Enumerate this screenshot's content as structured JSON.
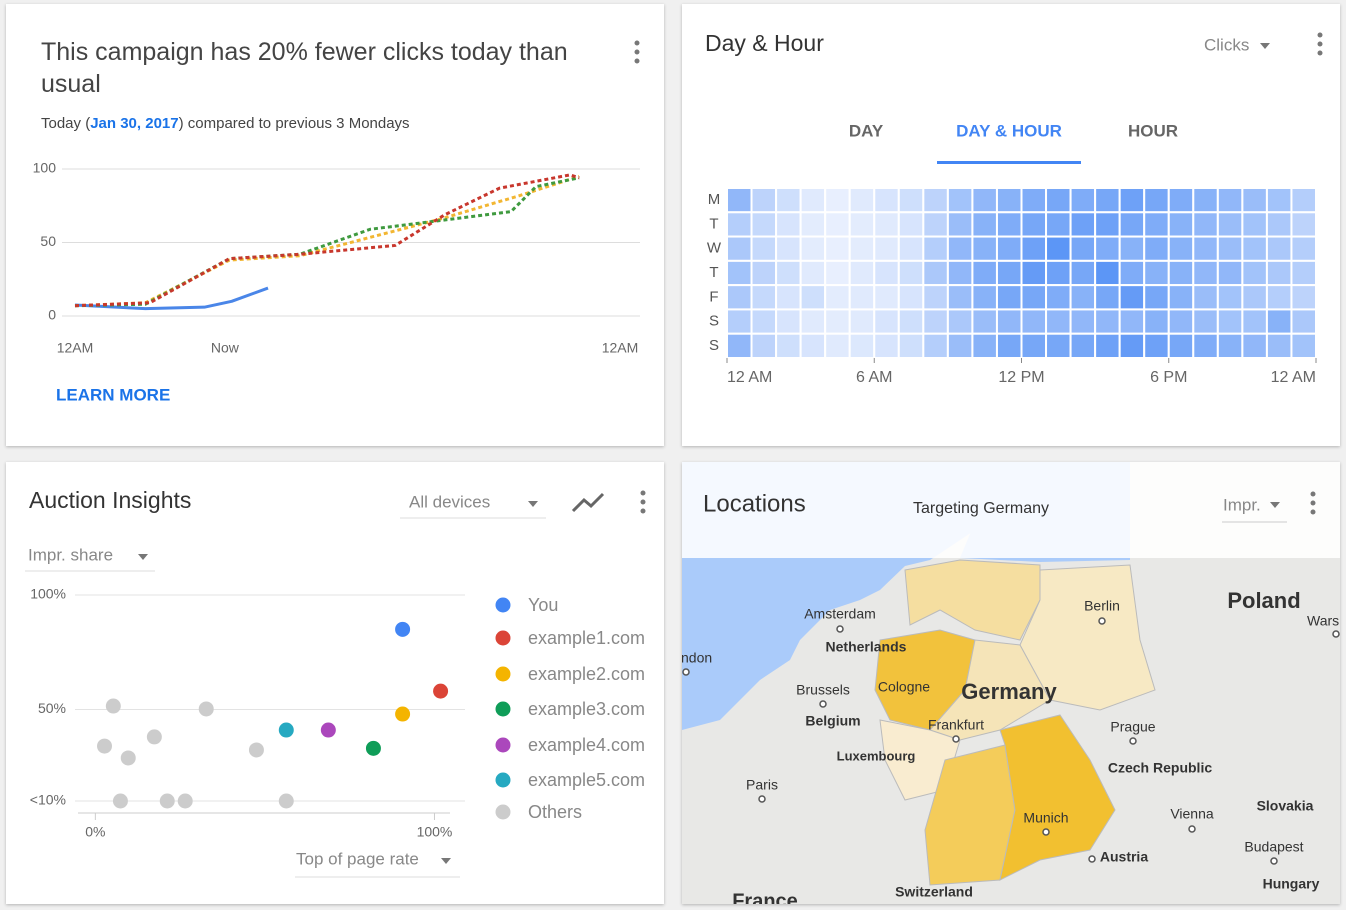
{
  "chart_data": [
    {
      "type": "line",
      "title": "This campaign has 20% fewer clicks today than usual",
      "subtitle": {
        "before": "Today (",
        "date": "Jan 30, 2017",
        "after": ") compared to previous 3 Mondays"
      },
      "link": "LEARN MORE",
      "xlim": [
        0,
        24
      ],
      "xticks": [
        {
          "value": 0,
          "label": "12AM"
        },
        {
          "value": 6.6,
          "label": "Now"
        },
        {
          "value": 24,
          "label": "12AM"
        }
      ],
      "ylim": [
        0,
        100
      ],
      "yticks": [
        0,
        50,
        100
      ],
      "grid": true,
      "series": [
        {
          "color": "#4a86e8",
          "dashed": false,
          "x": [
            0,
            3.1,
            5.7,
            6.9,
            8.5
          ],
          "values": [
            7.5,
            5,
            6,
            10,
            19
          ]
        },
        {
          "color": "#f2b632",
          "dashed": true,
          "x": [
            0,
            3.1,
            6.8,
            9.9,
            16.1,
            19.6,
            22.2
          ],
          "values": [
            7,
            9,
            38,
            41,
            66,
            82,
            95
          ]
        },
        {
          "color": "#3f9a3f",
          "dashed": true,
          "x": [
            0,
            3.1,
            6.8,
            9.9,
            13,
            15.6,
            19.2,
            20.3,
            22.2
          ],
          "values": [
            7,
            8,
            39,
            42,
            59,
            64,
            71,
            88,
            94
          ]
        },
        {
          "color": "#c8372d",
          "dashed": true,
          "x": [
            0,
            3.3,
            6.8,
            9.9,
            14.1,
            16.3,
            18.7,
            21.8,
            22.2
          ],
          "values": [
            7,
            9,
            39,
            42,
            48,
            69,
            87,
            96,
            94
          ]
        }
      ]
    },
    {
      "type": "heatmap",
      "title": "Day & Hour",
      "dropdown": "Clicks",
      "tabs": [
        "DAY",
        "DAY & HOUR",
        "HOUR"
      ],
      "active_tab": 1,
      "rows": [
        "M",
        "T",
        "W",
        "T",
        "F",
        "S",
        "S"
      ],
      "xlim": [
        0,
        24
      ],
      "xticks": [
        {
          "value": 0,
          "label": "12 AM"
        },
        {
          "value": 6,
          "label": "6 AM"
        },
        {
          "value": 12,
          "label": "12 PM"
        },
        {
          "value": 18,
          "label": "6 PM"
        },
        {
          "value": 24,
          "label": "12 AM"
        }
      ],
      "color": "#4285f4",
      "color_range": [
        0,
        100
      ],
      "values": [
        [
          55,
          30,
          20,
          10,
          5,
          10,
          15,
          20,
          30,
          45,
          55,
          60,
          65,
          70,
          65,
          70,
          75,
          70,
          65,
          60,
          55,
          50,
          45,
          35
        ],
        [
          35,
          25,
          15,
          8,
          5,
          8,
          10,
          15,
          30,
          50,
          60,
          65,
          70,
          70,
          75,
          75,
          70,
          65,
          60,
          55,
          50,
          45,
          40,
          30
        ],
        [
          40,
          25,
          15,
          8,
          5,
          8,
          10,
          15,
          35,
          55,
          60,
          65,
          75,
          85,
          70,
          65,
          60,
          65,
          60,
          55,
          50,
          45,
          40,
          35
        ],
        [
          45,
          30,
          20,
          10,
          5,
          10,
          15,
          20,
          40,
          55,
          65,
          70,
          80,
          75,
          70,
          85,
          65,
          60,
          60,
          55,
          55,
          45,
          40,
          35
        ],
        [
          40,
          25,
          15,
          20,
          8,
          10,
          10,
          15,
          30,
          50,
          60,
          70,
          70,
          65,
          60,
          70,
          80,
          70,
          60,
          50,
          45,
          40,
          35,
          30
        ],
        [
          35,
          25,
          15,
          10,
          8,
          10,
          15,
          20,
          30,
          40,
          50,
          55,
          55,
          55,
          55,
          55,
          55,
          60,
          55,
          50,
          45,
          45,
          60,
          40
        ],
        [
          55,
          30,
          20,
          15,
          10,
          12,
          15,
          20,
          35,
          50,
          60,
          70,
          70,
          70,
          70,
          75,
          80,
          75,
          70,
          65,
          60,
          55,
          50,
          45
        ]
      ]
    },
    {
      "type": "scatter",
      "title": "Auction Insights",
      "device_filter": "All devices",
      "y_label": "Impr. share",
      "x_label": "Top of page rate",
      "xlim": [
        -6,
        109
      ],
      "xticks": [
        {
          "value": 0,
          "label": "0%"
        },
        {
          "value": 100,
          "label": "100%"
        }
      ],
      "ylim": [
        10,
        100
      ],
      "yticks": [
        {
          "value": 10,
          "label": "<10%"
        },
        {
          "value": 50,
          "label": "50%"
        },
        {
          "value": 100,
          "label": "100%"
        }
      ],
      "grid": true,
      "series": [
        {
          "name": "You",
          "color": "#4285f4",
          "x": [
            90.6
          ],
          "values": [
            85
          ]
        },
        {
          "name": "example1.com",
          "color": "#db4437",
          "x": [
            101.8
          ],
          "values": [
            58
          ]
        },
        {
          "name": "example2.com",
          "color": "#f4b400",
          "x": [
            90.6
          ],
          "values": [
            48
          ]
        },
        {
          "name": "example3.com",
          "color": "#0f9d58",
          "x": [
            82
          ],
          "values": [
            33
          ]
        },
        {
          "name": "example4.com",
          "color": "#ab47bc",
          "x": [
            68.7
          ],
          "values": [
            41
          ]
        },
        {
          "name": "example5.com",
          "color": "#26a9c1",
          "x": [
            56.3
          ],
          "values": [
            41
          ]
        },
        {
          "name": "Others",
          "color": "#cccccc",
          "x": [
            5.3,
            32.7,
            2.7,
            17.4,
            9.7,
            47.5,
            7.4,
            21.2,
            26.5,
            56.3
          ],
          "values": [
            51.5,
            50.2,
            34,
            38,
            28.8,
            32.3,
            10,
            10,
            10,
            10
          ]
        }
      ]
    }
  ],
  "locations": {
    "title": "Locations",
    "subtitle": "Targeting Germany",
    "dropdown": "Impr.",
    "places": [
      "Amsterdam",
      "Netherlands",
      "ndon",
      "Brussels",
      "Belgium",
      "Cologne",
      "Germany",
      "Frankfurt",
      "Luxembourg",
      "Paris",
      "Berlin",
      "Poland",
      "Wars",
      "Prague",
      "Czech Republic",
      "Munich",
      "Vienna",
      "Slovakia",
      "Budapest",
      "Hungary",
      "Austria",
      "Switzerland",
      "France"
    ]
  }
}
